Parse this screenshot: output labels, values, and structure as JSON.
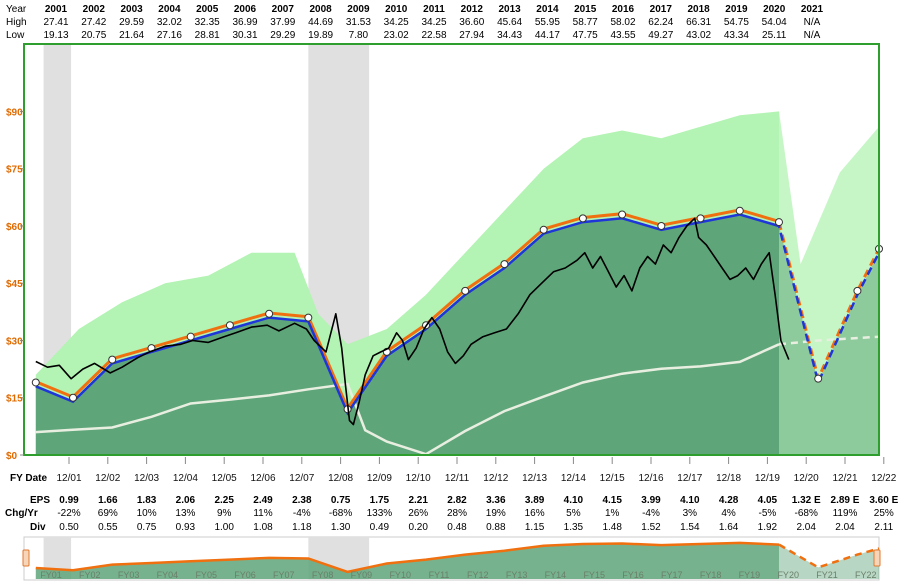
{
  "header": {
    "year_label": "Year",
    "high_label": "High",
    "low_label": "Low",
    "years": [
      "2001",
      "2002",
      "2003",
      "2004",
      "2005",
      "2006",
      "2007",
      "2008",
      "2009",
      "2010",
      "2011",
      "2012",
      "2013",
      "2014",
      "2015",
      "2016",
      "2017",
      "2018",
      "2019",
      "2020",
      "2021"
    ],
    "high": [
      "27.41",
      "27.42",
      "29.59",
      "32.02",
      "32.35",
      "36.99",
      "37.99",
      "44.69",
      "31.53",
      "34.25",
      "34.25",
      "36.60",
      "45.64",
      "55.95",
      "58.77",
      "58.02",
      "62.24",
      "66.31",
      "54.75",
      "54.04",
      "N/A"
    ],
    "low": [
      "19.13",
      "20.75",
      "21.64",
      "27.16",
      "28.81",
      "30.31",
      "29.29",
      "19.89",
      "7.80",
      "23.02",
      "22.58",
      "27.94",
      "34.43",
      "44.17",
      "47.75",
      "43.55",
      "49.27",
      "43.02",
      "43.34",
      "25.11",
      "N/A"
    ]
  },
  "table": {
    "fy_date_label": "FY Date",
    "eps_label": "EPS",
    "chg_label": "Chg/Yr",
    "div_label": "Div",
    "fy_dates": [
      "12/01",
      "12/02",
      "12/03",
      "12/04",
      "12/05",
      "12/06",
      "12/07",
      "12/08",
      "12/09",
      "12/10",
      "12/11",
      "12/12",
      "12/13",
      "12/14",
      "12/15",
      "12/16",
      "12/17",
      "12/18",
      "12/19",
      "12/20",
      "12/21",
      "12/22"
    ],
    "eps": [
      "0.99",
      "1.66",
      "1.83",
      "2.06",
      "2.25",
      "2.49",
      "2.38",
      "0.75",
      "1.75",
      "2.21",
      "2.82",
      "3.36",
      "3.89",
      "4.10",
      "4.15",
      "3.99",
      "4.10",
      "4.28",
      "4.05",
      "1.32 E",
      "2.89 E",
      "3.60 E"
    ],
    "chg": [
      "-22%",
      "69%",
      "10%",
      "13%",
      "9%",
      "11%",
      "-4%",
      "-68%",
      "133%",
      "26%",
      "28%",
      "19%",
      "16%",
      "5%",
      "1%",
      "-4%",
      "3%",
      "4%",
      "-5%",
      "-68%",
      "119%",
      "25%"
    ],
    "div": [
      "0.50",
      "0.55",
      "0.75",
      "0.93",
      "1.00",
      "1.08",
      "1.18",
      "1.30",
      "0.49",
      "0.20",
      "0.48",
      "0.88",
      "1.15",
      "1.35",
      "1.48",
      "1.52",
      "1.54",
      "1.64",
      "1.92",
      "2.04",
      "2.04",
      "2.11"
    ]
  },
  "navigator": {
    "labels": [
      "FY01",
      "FY02",
      "FY03",
      "FY04",
      "FY05",
      "FY06",
      "FY07",
      "FY08",
      "FY09",
      "FY10",
      "FY11",
      "FY12",
      "FY13",
      "FY14",
      "FY15",
      "FY16",
      "FY17",
      "FY18",
      "FY19",
      "FY20",
      "FY21",
      "FY22"
    ]
  },
  "colors": {
    "frame": "#2e9e2e",
    "normal_pe_band": "#b3f3b3",
    "value_area": "#5fa57a",
    "eps_line": "#1e35d9",
    "eps_outline": "#f07010",
    "price_line": "#000000",
    "dividend_line": "#e8efe0",
    "recession": "#e0e0e0",
    "ytick": "#e06a00"
  },
  "chart_data": {
    "type": "line",
    "title": "",
    "xlabel": "",
    "ylabel": "",
    "y_ticks": [
      "$0",
      "$15",
      "$30",
      "$45",
      "$60",
      "$75",
      "$90"
    ],
    "ylim": [
      0,
      104
    ],
    "xlim": [
      2000.7,
      2022.5
    ],
    "grid": false,
    "x_fiscal_year_end": [
      2001.95,
      2002.95,
      2003.95,
      2004.95,
      2005.95,
      2006.95,
      2007.95,
      2008.95,
      2009.95,
      2010.95,
      2011.95,
      2012.95,
      2013.95,
      2014.95,
      2015.95,
      2016.95,
      2017.95,
      2018.95,
      2019.95,
      2020.95,
      2021.95,
      2022.95
    ],
    "recessions": [
      [
        2001.2,
        2001.9
      ],
      [
        2007.95,
        2009.5
      ]
    ],
    "series": [
      {
        "name": "EPS",
        "values": [
          18,
          14,
          24,
          27,
          30,
          33,
          36,
          35,
          11,
          26,
          33,
          42,
          49,
          58,
          61,
          62,
          59,
          61,
          63,
          60,
          19,
          42,
          53
        ]
      },
      {
        "name": "EPS",
        "values": [
          17.5,
          13.5,
          23.5,
          26.5,
          29.5,
          32.5,
          35.5,
          34.5,
          10.5,
          25.5,
          32.5,
          41.5,
          48.5,
          57,
          59.5,
          60,
          57.5,
          59.5,
          62,
          58.5,
          18.5,
          41.5,
          52
        ]
      },
      {
        "name": "Div",
        "values": [
          6,
          6.6,
          7.2,
          10,
          13.5,
          14.5,
          15.6,
          17.2,
          18.6,
          6.5,
          0.2,
          6.3,
          11.5,
          15.3,
          19,
          21.3,
          22.6,
          23.2,
          24.4,
          29,
          30,
          31
        ]
      },
      {
        "name": "High",
        "values": [
          27.41,
          27.42,
          29.59,
          32.02,
          32.35,
          36.99,
          37.99,
          44.69,
          31.53,
          34.25,
          34.25,
          36.6,
          45.64,
          55.95,
          58.77,
          58.02,
          62.24,
          66.31,
          54.75,
          54.04
        ]
      },
      {
        "name": "Low",
        "values": [
          19.13,
          20.75,
          21.64,
          27.16,
          28.81,
          30.31,
          29.29,
          19.89,
          7.8,
          23.02,
          22.58,
          27.94,
          34.43,
          44.17,
          47.75,
          43.55,
          49.27,
          43.02,
          43.34,
          25.11
        ]
      }
    ],
    "price_path": [
      [
        2001,
        24.5
      ],
      [
        2001.3,
        23
      ],
      [
        2001.6,
        23.5
      ],
      [
        2001.9,
        20
      ],
      [
        2002.2,
        22.5
      ],
      [
        2002.5,
        24
      ],
      [
        2002.9,
        21.5
      ],
      [
        2003.2,
        23
      ],
      [
        2003.6,
        25.5
      ],
      [
        2003.9,
        27
      ],
      [
        2004.3,
        28.5
      ],
      [
        2004.7,
        29
      ],
      [
        2005,
        30
      ],
      [
        2005.4,
        29.5
      ],
      [
        2005.8,
        31
      ],
      [
        2006.1,
        32
      ],
      [
        2006.5,
        33.5
      ],
      [
        2006.9,
        34
      ],
      [
        2007.2,
        32.5
      ],
      [
        2007.6,
        34.5
      ],
      [
        2007.9,
        33
      ],
      [
        2008.1,
        30
      ],
      [
        2008.4,
        27
      ],
      [
        2008.5,
        31
      ],
      [
        2008.65,
        37
      ],
      [
        2008.8,
        28
      ],
      [
        2008.9,
        18
      ],
      [
        2009.0,
        9
      ],
      [
        2009.1,
        8
      ],
      [
        2009.25,
        14
      ],
      [
        2009.4,
        21
      ],
      [
        2009.6,
        26
      ],
      [
        2009.8,
        27
      ],
      [
        2010.0,
        28
      ],
      [
        2010.2,
        32
      ],
      [
        2010.35,
        30
      ],
      [
        2010.5,
        25
      ],
      [
        2010.7,
        28
      ],
      [
        2010.9,
        33
      ],
      [
        2011.1,
        36
      ],
      [
        2011.3,
        33
      ],
      [
        2011.5,
        27
      ],
      [
        2011.7,
        24
      ],
      [
        2011.9,
        26
      ],
      [
        2012.1,
        29
      ],
      [
        2012.4,
        31
      ],
      [
        2012.7,
        32
      ],
      [
        2013.0,
        33
      ],
      [
        2013.3,
        37
      ],
      [
        2013.6,
        42
      ],
      [
        2013.9,
        45
      ],
      [
        2014.2,
        48
      ],
      [
        2014.5,
        49
      ],
      [
        2014.8,
        51
      ],
      [
        2015.0,
        53
      ],
      [
        2015.2,
        49
      ],
      [
        2015.4,
        52
      ],
      [
        2015.6,
        48
      ],
      [
        2015.8,
        44
      ],
      [
        2016.0,
        47
      ],
      [
        2016.2,
        43
      ],
      [
        2016.4,
        49
      ],
      [
        2016.6,
        52
      ],
      [
        2016.8,
        50
      ],
      [
        2017.0,
        55
      ],
      [
        2017.2,
        53
      ],
      [
        2017.4,
        57
      ],
      [
        2017.6,
        60
      ],
      [
        2017.8,
        62
      ],
      [
        2017.9,
        57
      ],
      [
        2018.1,
        55
      ],
      [
        2018.3,
        52
      ],
      [
        2018.5,
        49
      ],
      [
        2018.7,
        46
      ],
      [
        2018.9,
        47
      ],
      [
        2019.1,
        49
      ],
      [
        2019.3,
        46
      ],
      [
        2019.5,
        50
      ],
      [
        2019.7,
        53
      ],
      [
        2019.85,
        42
      ],
      [
        2020.0,
        30
      ],
      [
        2020.2,
        25
      ]
    ],
    "value_area_path": [
      [
        2001,
        18
      ],
      [
        2001.95,
        14
      ],
      [
        2002.95,
        24
      ],
      [
        2003.95,
        27
      ],
      [
        2004.95,
        30
      ],
      [
        2005.95,
        33
      ],
      [
        2006.95,
        36
      ],
      [
        2007.95,
        35
      ],
      [
        2008.95,
        11
      ],
      [
        2009.95,
        26
      ],
      [
        2010.95,
        33
      ],
      [
        2011.95,
        42
      ],
      [
        2012.95,
        49
      ],
      [
        2013.95,
        58
      ],
      [
        2014.95,
        61
      ],
      [
        2015.95,
        62
      ],
      [
        2016.95,
        59
      ],
      [
        2017.95,
        61
      ],
      [
        2018.95,
        63
      ],
      [
        2019.95,
        60
      ],
      [
        2020.95,
        19
      ],
      [
        2021.95,
        42
      ],
      [
        2022.5,
        53
      ]
    ],
    "normal_pe_path": [
      [
        2001,
        21
      ],
      [
        2002.1,
        33
      ],
      [
        2003.2,
        40
      ],
      [
        2004.3,
        45
      ],
      [
        2005.4,
        47
      ],
      [
        2006.5,
        53
      ],
      [
        2007.6,
        53
      ],
      [
        2008.2,
        37
      ],
      [
        2008.95,
        29
      ],
      [
        2009.95,
        33
      ],
      [
        2010.95,
        42
      ],
      [
        2011.95,
        53
      ],
      [
        2012.95,
        64
      ],
      [
        2013.95,
        75
      ],
      [
        2014.95,
        83
      ],
      [
        2015.95,
        85
      ],
      [
        2016.95,
        83
      ],
      [
        2017.95,
        86
      ],
      [
        2018.95,
        89
      ],
      [
        2019.95,
        90
      ],
      [
        2020.5,
        50
      ],
      [
        2021.5,
        74
      ],
      [
        2022.5,
        86
      ]
    ]
  }
}
